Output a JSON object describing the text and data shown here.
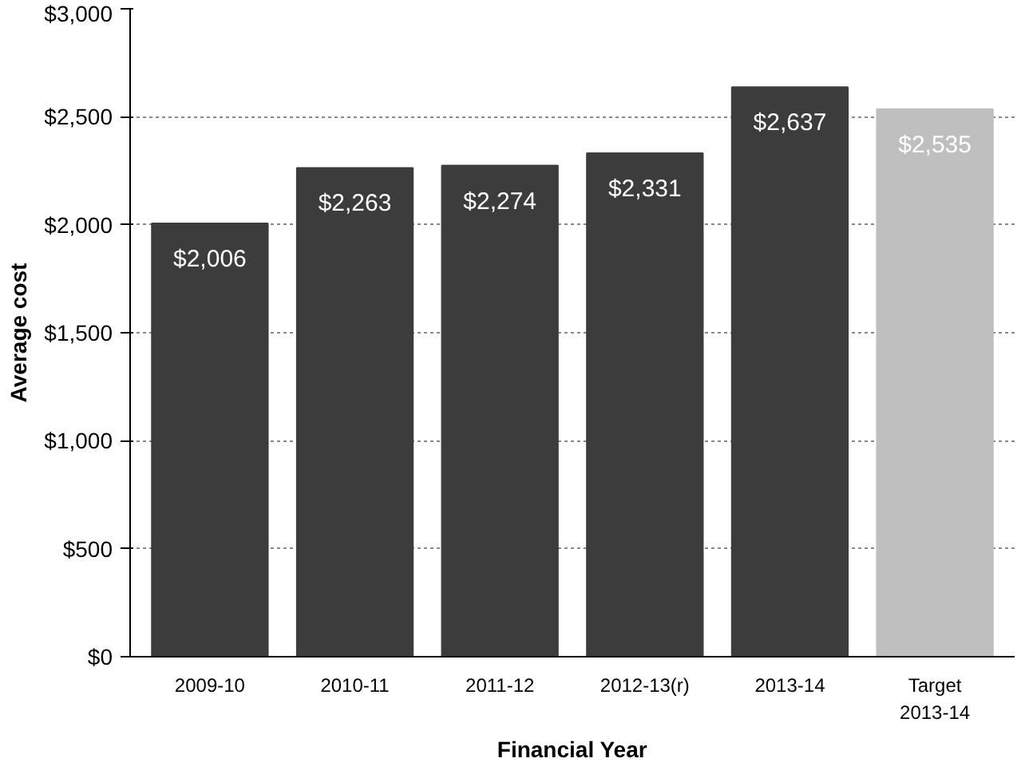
{
  "chart_data": {
    "type": "bar",
    "xlabel": "Financial Year",
    "ylabel": "Average cost",
    "categories": [
      "2009-10",
      "2010-11",
      "2011-12",
      "2012-13(r)",
      "2013-14",
      "Target 2013-14"
    ],
    "values": [
      2006,
      2263,
      2274,
      2331,
      2637,
      2535
    ],
    "colors": [
      "#3c3c3c",
      "#3c3c3c",
      "#3c3c3c",
      "#3c3c3c",
      "#3c3c3c",
      "#bfbfbf"
    ],
    "value_labels": [
      "$2,006",
      "$2,263",
      "$2,274",
      "$2,331",
      "$2,637",
      "$2,535"
    ],
    "ylim": [
      0,
      3000
    ],
    "yticks": [
      {
        "value": 0,
        "label": "$0"
      },
      {
        "value": 500,
        "label": "$500"
      },
      {
        "value": 1000,
        "label": "$1,000"
      },
      {
        "value": 1500,
        "label": "$1,500"
      },
      {
        "value": 2000,
        "label": "$2,000"
      },
      {
        "value": 2500,
        "label": "$2,500"
      },
      {
        "value": 3000,
        "label": "$3,000"
      }
    ],
    "grid": "y"
  }
}
